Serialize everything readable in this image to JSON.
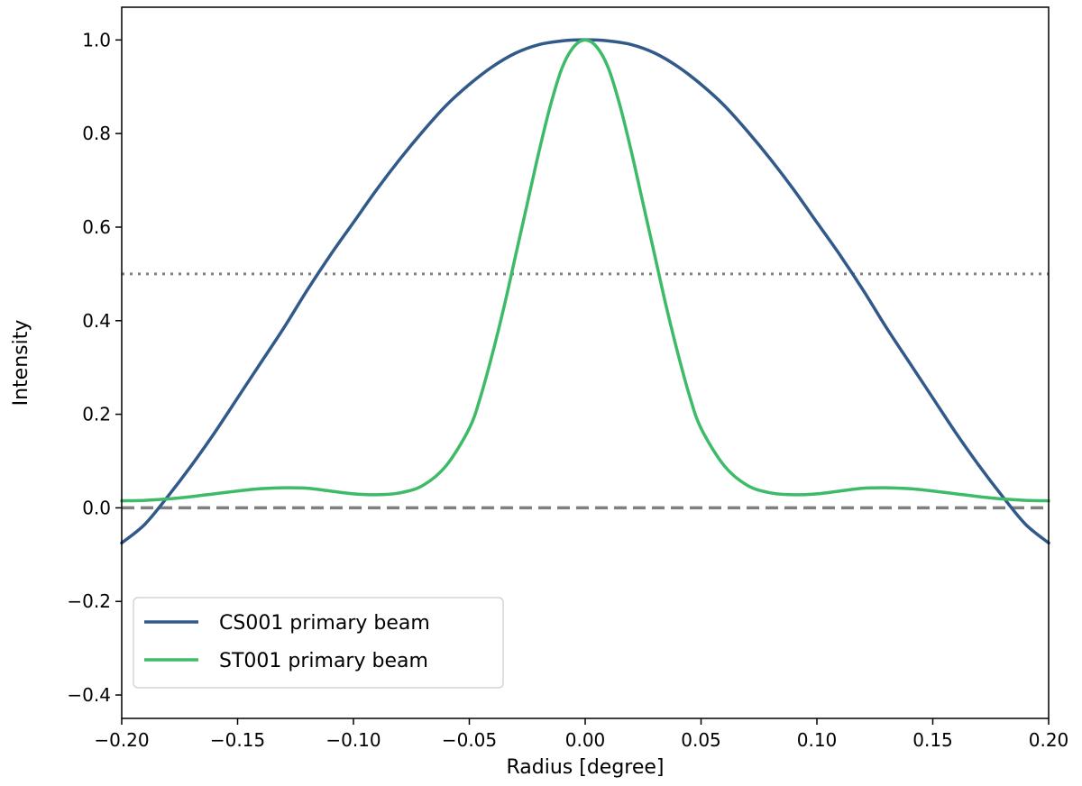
{
  "chart_data": {
    "type": "line",
    "title": "",
    "xlabel": "Radius [degree]",
    "ylabel": "Intensity",
    "xlim": [
      -0.2,
      0.2
    ],
    "ylim": [
      -0.45,
      1.07
    ],
    "xticks": [
      -0.2,
      -0.15,
      -0.1,
      -0.05,
      0.0,
      0.05,
      0.1,
      0.15,
      0.2
    ],
    "xtick_labels": [
      "−0.20",
      "−0.15",
      "−0.10",
      "−0.05",
      "0.00",
      "0.05",
      "0.10",
      "0.15",
      "0.20"
    ],
    "yticks": [
      -0.4,
      -0.2,
      0.0,
      0.2,
      0.4,
      0.6,
      0.8,
      1.0
    ],
    "ytick_labels": [
      "−0.4",
      "−0.2",
      "0.0",
      "0.2",
      "0.4",
      "0.6",
      "0.8",
      "1.0"
    ],
    "grid": false,
    "legend_position": "lower-left",
    "reference_lines": [
      {
        "name": "half-power",
        "y": 0.5,
        "style": "dotted",
        "color": "#808080"
      },
      {
        "name": "zero",
        "y": 0.0,
        "style": "dashed",
        "color": "#808080"
      }
    ],
    "series": [
      {
        "name": "CS001 primary beam",
        "color": "#31598a",
        "x": [
          -0.2,
          -0.19,
          -0.18,
          -0.17,
          -0.16,
          -0.15,
          -0.14,
          -0.13,
          -0.12,
          -0.11,
          -0.1,
          -0.09,
          -0.08,
          -0.07,
          -0.06,
          -0.05,
          -0.04,
          -0.03,
          -0.02,
          -0.01,
          -0.005,
          0.005,
          0.01,
          0.02,
          0.03,
          0.04,
          0.05,
          0.06,
          0.07,
          0.08,
          0.09,
          0.1,
          0.11,
          0.12,
          0.13,
          0.14,
          0.15,
          0.16,
          0.17,
          0.18,
          0.19,
          0.2
        ],
        "values": [
          -0.075,
          -0.035,
          0.025,
          0.09,
          0.16,
          0.235,
          0.31,
          0.385,
          0.465,
          0.54,
          0.61,
          0.68,
          0.745,
          0.805,
          0.86,
          0.905,
          0.943,
          0.972,
          0.99,
          0.998,
          1.0,
          1.0,
          0.998,
          0.99,
          0.972,
          0.943,
          0.905,
          0.86,
          0.805,
          0.745,
          0.68,
          0.61,
          0.54,
          0.465,
          0.385,
          0.31,
          0.235,
          0.16,
          0.09,
          0.025,
          -0.035,
          -0.075
        ]
      },
      {
        "name": "ST001 primary beam",
        "color": "#3dbb68",
        "x": [
          -0.2,
          -0.19,
          -0.18,
          -0.17,
          -0.16,
          -0.15,
          -0.14,
          -0.13,
          -0.12,
          -0.11,
          -0.1,
          -0.09,
          -0.08,
          -0.07,
          -0.06,
          -0.05,
          -0.045,
          -0.04,
          -0.035,
          -0.03,
          -0.025,
          -0.02,
          -0.015,
          -0.01,
          -0.005,
          0.0,
          0.005,
          0.01,
          0.015,
          0.02,
          0.025,
          0.03,
          0.035,
          0.04,
          0.045,
          0.05,
          0.06,
          0.07,
          0.08,
          0.09,
          0.1,
          0.11,
          0.12,
          0.13,
          0.14,
          0.15,
          0.16,
          0.17,
          0.18,
          0.19,
          0.2
        ],
        "values": [
          0.015,
          0.016,
          0.019,
          0.024,
          0.03,
          0.036,
          0.041,
          0.043,
          0.042,
          0.036,
          0.03,
          0.028,
          0.032,
          0.048,
          0.09,
          0.17,
          0.24,
          0.33,
          0.43,
          0.54,
          0.65,
          0.76,
          0.86,
          0.94,
          0.985,
          1.0,
          0.985,
          0.94,
          0.86,
          0.76,
          0.65,
          0.54,
          0.43,
          0.33,
          0.24,
          0.17,
          0.09,
          0.048,
          0.032,
          0.028,
          0.03,
          0.036,
          0.042,
          0.043,
          0.041,
          0.036,
          0.03,
          0.024,
          0.019,
          0.016,
          0.015
        ]
      }
    ]
  }
}
